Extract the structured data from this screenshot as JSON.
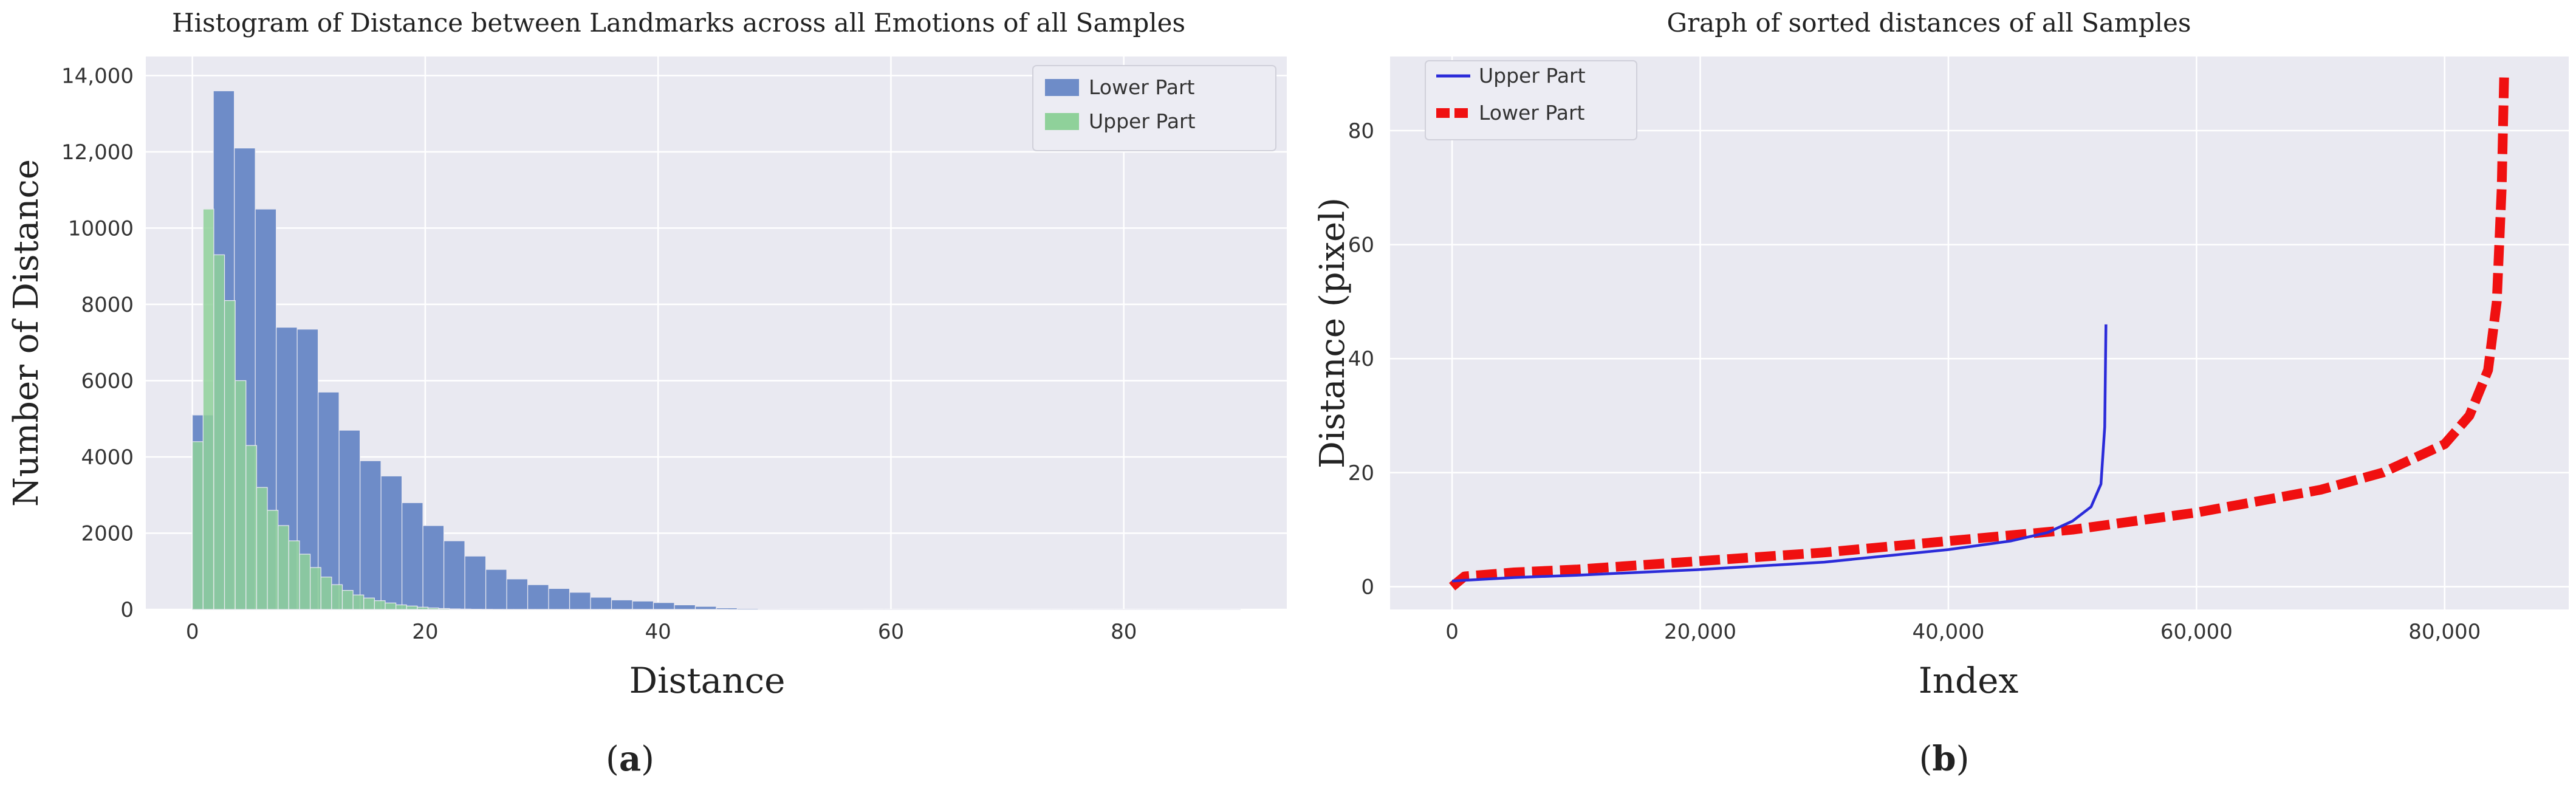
{
  "colors": {
    "plot_bg": "#e9e9f1",
    "grid": "#ffffff",
    "lower_hist": "#6e8cc8",
    "upper_hist": "#8fd19a",
    "upper_line": "#2b2bd9",
    "lower_line": "#f01010",
    "text": "#222222"
  },
  "chart_data": [
    {
      "type": "bar",
      "title": "Histogram of Distance between Landmarks across all Emotions of all Samples",
      "xlabel": "Distance",
      "ylabel": "Number of Distance",
      "xlim": [
        -4,
        94
      ],
      "ylim": [
        0,
        14500
      ],
      "xticks": [
        0,
        20,
        40,
        60,
        80
      ],
      "xtick_labels": [
        "0",
        "20",
        "40",
        "60",
        "80"
      ],
      "yticks": [
        0,
        2000,
        4000,
        6000,
        8000,
        10000,
        12000,
        14000
      ],
      "ytick_labels": [
        "0",
        "2000",
        "4000",
        "6000",
        "8000",
        "10000",
        "12,000",
        "14,000"
      ],
      "legend_position": "top-right",
      "grid": true,
      "series": [
        {
          "name": "Lower Part",
          "color_key": "lower_hist",
          "bin_start": 0,
          "bin_width": 1.8,
          "values": [
            5100,
            13600,
            12100,
            10500,
            7400,
            7350,
            5700,
            4700,
            3900,
            3500,
            2800,
            2200,
            1800,
            1400,
            1050,
            800,
            650,
            550,
            450,
            320,
            250,
            220,
            180,
            120,
            80,
            40,
            25,
            12,
            8,
            6,
            5,
            4,
            3,
            3,
            2,
            2,
            2,
            1,
            1,
            1,
            1,
            1,
            1,
            1,
            1,
            1,
            1,
            1,
            1,
            1
          ]
        },
        {
          "name": "Upper Part",
          "color_key": "upper_hist",
          "bin_start": 0,
          "bin_width": 0.92,
          "values": [
            4400,
            10500,
            9300,
            8100,
            6000,
            4300,
            3200,
            2600,
            2200,
            1800,
            1450,
            1100,
            850,
            650,
            500,
            380,
            300,
            230,
            170,
            120,
            90,
            60,
            40,
            25,
            15,
            10,
            6,
            4,
            2,
            1,
            1,
            1,
            1,
            1,
            1,
            1,
            1,
            1,
            1,
            1,
            1,
            1,
            1,
            1,
            1,
            1,
            1,
            1,
            1,
            1
          ]
        }
      ],
      "caption_letter": "a"
    },
    {
      "type": "line",
      "title": "Graph of sorted distances of all Samples",
      "xlabel": "Index",
      "ylabel": "Distance (pixel)",
      "xlim": [
        -5000,
        90000
      ],
      "ylim": [
        -4,
        93
      ],
      "xticks": [
        0,
        20000,
        40000,
        60000,
        80000
      ],
      "xtick_labels": [
        "0",
        "20,000",
        "40,000",
        "60,000",
        "80,000"
      ],
      "yticks": [
        0,
        20,
        40,
        60,
        80
      ],
      "ytick_labels": [
        "0",
        "20",
        "40",
        "60",
        "80"
      ],
      "legend_position": "top-left",
      "grid": true,
      "series": [
        {
          "name": "Upper Part",
          "color_key": "upper_line",
          "style": "solid",
          "x": [
            0,
            5000,
            10000,
            20000,
            30000,
            40000,
            45000,
            48000,
            50000,
            51500,
            52300,
            52600,
            52700
          ],
          "y": [
            1,
            1.6,
            2,
            3,
            4.3,
            6.5,
            8,
            9.5,
            11.5,
            14,
            18,
            28,
            46
          ]
        },
        {
          "name": "Lower Part",
          "color_key": "lower_line",
          "style": "dashed",
          "x": [
            0,
            1000,
            5000,
            10000,
            20000,
            30000,
            40000,
            50000,
            60000,
            70000,
            75000,
            80000,
            82000,
            83500,
            84200,
            84600,
            84800
          ],
          "y": [
            0,
            1.8,
            2.5,
            3,
            4.5,
            6,
            8,
            10,
            13,
            17,
            20,
            25,
            30,
            38,
            50,
            70,
            90
          ]
        }
      ],
      "caption_letter": "b"
    }
  ]
}
